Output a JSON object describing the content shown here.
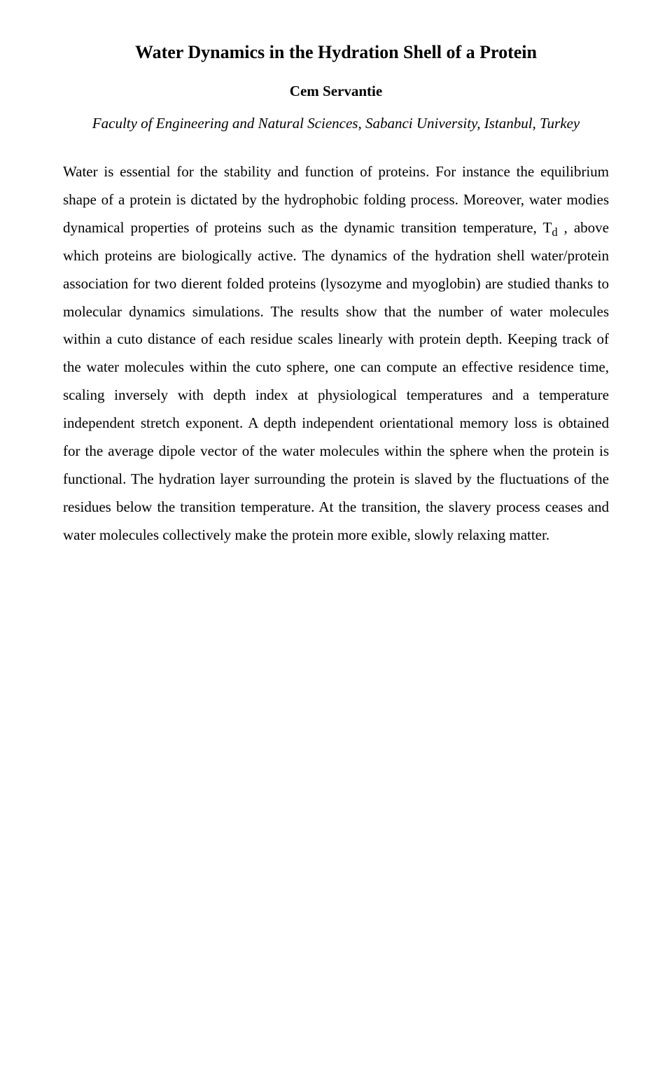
{
  "title": "Water Dynamics in the Hydration Shell of a Protein",
  "author": "Cem Servantie",
  "affiliation": "Faculty of Engineering and Natural Sciences, Sabanci University, Istanbul, Turkey",
  "body": {
    "p1_a": "Water is essential for the stability and function of proteins. For instance the equilibrium shape of a protein is dictated by the hydrophobic folding process. Moreover, water modies dynamical properties of proteins such as the dynamic transition temperature, T",
    "p1_sub": "d",
    "p1_b": " , above which proteins are biologically active. The dynamics of the hydration shell water/protein association for two dierent folded proteins (lysozyme and myoglobin) are studied thanks to molecular dynamics simulations. The results show that the number of water molecules within a cuto distance of each residue scales linearly with protein depth. Keeping track of the water molecules within the cuto sphere, one can compute an effective residence time, scaling inversely with depth index at physiological temperatures and a temperature independent stretch exponent. A depth independent orientational memory loss is obtained for the average dipole vector of the water molecules within the sphere when the protein is functional. The hydration layer surrounding the protein is slaved by the fluctuations of the residues below the transition temperature. At the transition, the slavery process ceases and water molecules collectively make the protein more exible, slowly relaxing matter."
  },
  "colors": {
    "text": "#000000",
    "background": "#ffffff"
  },
  "typography": {
    "family": "Times New Roman",
    "title_pt": 26,
    "author_pt": 21,
    "affiliation_pt": 21,
    "body_pt": 21,
    "line_height": 1.9
  }
}
